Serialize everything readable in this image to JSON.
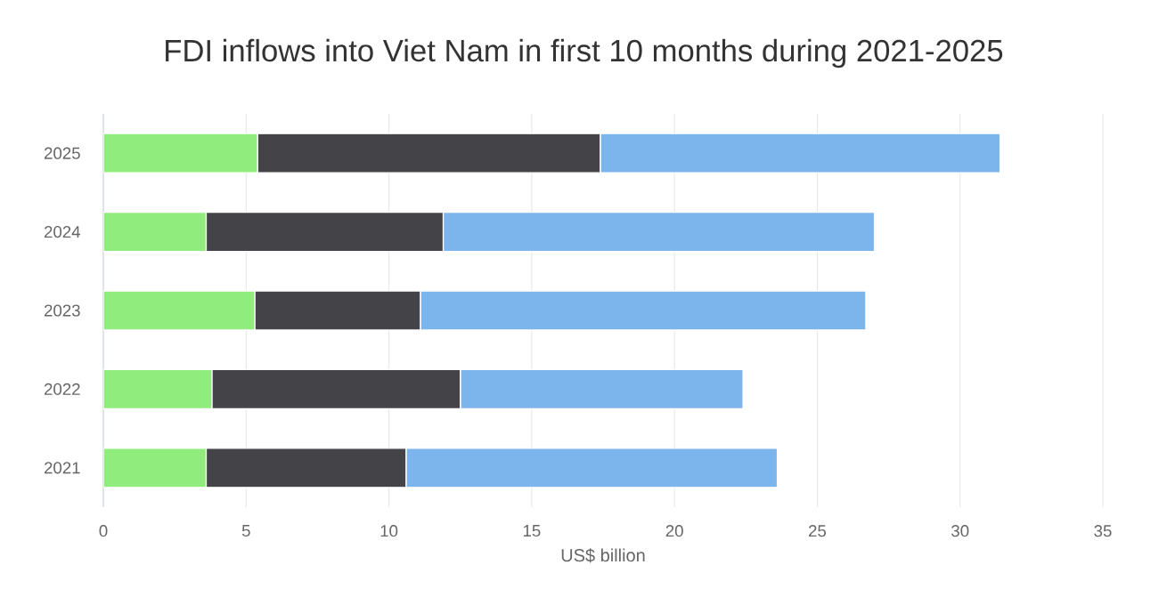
{
  "chart_data": {
    "type": "bar",
    "title": "FDI inflows into Viet Nam in first 10 months during 2021-2025",
    "xlabel": "US$ billion",
    "orientation": "horizontal",
    "stacked": true,
    "grid": "x",
    "categories": [
      "2025",
      "2024",
      "2023",
      "2022",
      "2021"
    ],
    "series": [
      {
        "color": "#90ed7d",
        "values": [
          5.4,
          3.6,
          5.3,
          3.8,
          3.6
        ]
      },
      {
        "color": "#434348",
        "values": [
          12.0,
          8.3,
          5.8,
          8.7,
          7.0
        ]
      },
      {
        "color": "#7cb5ec",
        "values": [
          14.0,
          15.1,
          15.6,
          9.9,
          13.0
        ]
      }
    ],
    "xlim": [
      0,
      35
    ],
    "xticks": [
      0,
      5,
      10,
      15,
      20,
      25,
      30,
      35
    ]
  }
}
